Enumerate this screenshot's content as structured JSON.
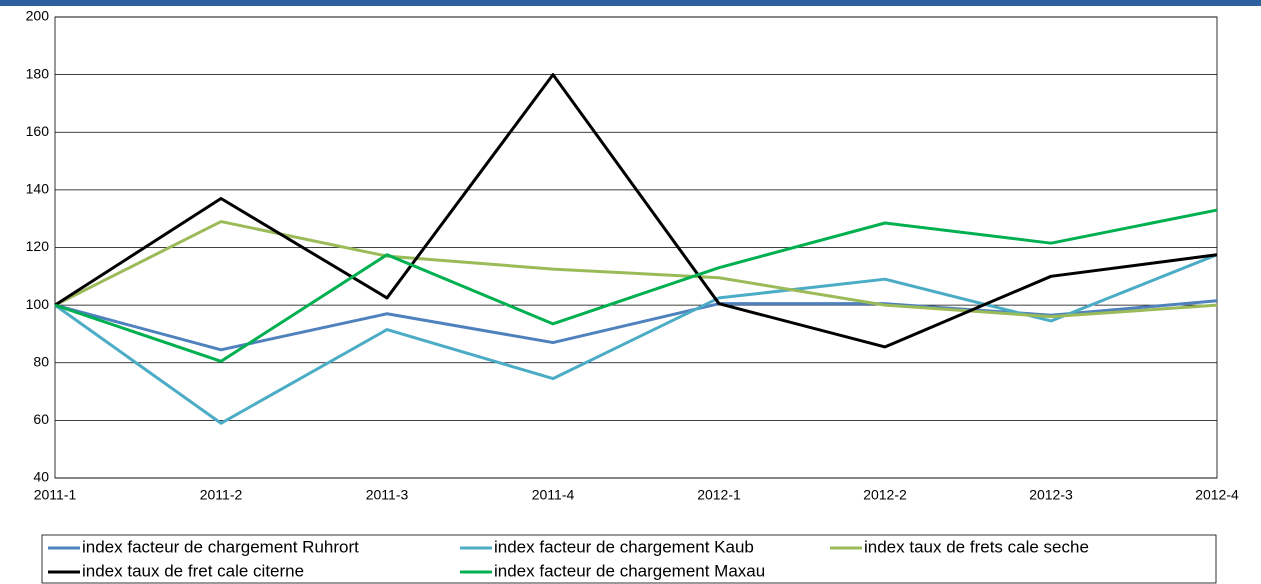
{
  "chart_data": {
    "type": "line",
    "categories": [
      "2011-1",
      "2011-2",
      "2011-3",
      "2011-4",
      "2012-1",
      "2012-2",
      "2012-3",
      "2012-4"
    ],
    "series": [
      {
        "name": "index facteur de chargement Ruhrort",
        "color": "#4f81bd",
        "values": [
          100,
          84.5,
          97,
          87,
          100.5,
          100.5,
          96.5,
          101.5
        ]
      },
      {
        "name": "index facteur de chargement Kaub",
        "color": "#4bacc6",
        "values": [
          100,
          59,
          91.5,
          74.5,
          102.5,
          109,
          94.5,
          117.5
        ]
      },
      {
        "name": "index taux de frets cale seche",
        "color": "#9bbb59",
        "values": [
          100,
          129,
          117,
          112.5,
          109.5,
          100,
          96,
          100
        ]
      },
      {
        "name": "index taux de fret cale citerne",
        "color": "#000000",
        "values": [
          100,
          137,
          102.5,
          180,
          100.5,
          85.5,
          110,
          117.5
        ]
      },
      {
        "name": "index facteur de chargement Maxau",
        "color": "#00b050",
        "values": [
          100,
          80.5,
          117.5,
          93.5,
          113,
          128.5,
          121.5,
          133
        ]
      }
    ],
    "ylim": [
      40,
      200
    ],
    "yticks": [
      40,
      60,
      80,
      100,
      120,
      140,
      160,
      180,
      200
    ],
    "grid": true
  }
}
